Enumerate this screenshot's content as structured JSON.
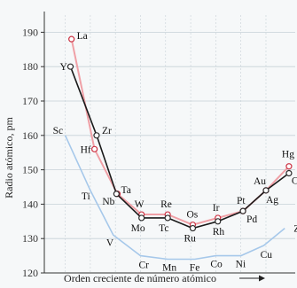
{
  "chart_data": {
    "type": "line",
    "ylabel": "Radio atómico, pm",
    "xlabel": "Orden creciente de número atómico",
    "ylim": [
      120,
      195
    ],
    "yticks": [
      120,
      130,
      140,
      150,
      160,
      170,
      180,
      190
    ],
    "xrange": [
      0,
      24
    ],
    "grid": true,
    "colors": {
      "period4": "#a6c8ea",
      "period5": "#1a1a1a",
      "period5_marker": "#2b2b2b",
      "period6": "#f0a0a6",
      "period6_marker": "#cc3344",
      "grid": "#c7d1d7",
      "axis": "#333333",
      "background": "#f6f8f9"
    },
    "series": [
      {
        "key": "period4",
        "points": [
          {
            "x": 2.0,
            "y": 160,
            "label": "Sc"
          },
          {
            "x": 4.4,
            "y": 144,
            "label": "Ti"
          },
          {
            "x": 6.6,
            "y": 131,
            "label": "V"
          },
          {
            "x": 9.2,
            "y": 125,
            "label": "Cr"
          },
          {
            "x": 11.8,
            "y": 124,
            "label": "Mn"
          },
          {
            "x": 14.4,
            "y": 124,
            "label": "Fe"
          },
          {
            "x": 16.4,
            "y": 125,
            "label": "Co"
          },
          {
            "x": 18.8,
            "y": 125,
            "label": "Ni"
          },
          {
            "x": 21.0,
            "y": 128,
            "label": "Cu"
          },
          {
            "x": 23.0,
            "y": 133,
            "label": "Zn"
          }
        ]
      },
      {
        "key": "period5",
        "points": [
          {
            "x": 2.5,
            "y": 180,
            "label": "Y"
          },
          {
            "x": 5.0,
            "y": 160,
            "label": "Zr"
          },
          {
            "x": 6.9,
            "y": 143,
            "label": "Nb"
          },
          {
            "x": 9.3,
            "y": 136,
            "label": "Mo"
          },
          {
            "x": 11.8,
            "y": 136,
            "label": "Tc"
          },
          {
            "x": 14.2,
            "y": 133,
            "label": "Ru"
          },
          {
            "x": 16.6,
            "y": 135,
            "label": "Rh"
          },
          {
            "x": 19.0,
            "y": 138,
            "label": "Pd"
          },
          {
            "x": 21.2,
            "y": 144,
            "label": "Ag"
          },
          {
            "x": 23.4,
            "y": 149,
            "label": "Cd"
          }
        ]
      },
      {
        "key": "period6",
        "points": [
          {
            "x": 2.6,
            "y": 188,
            "label": "La"
          },
          {
            "x": 4.8,
            "y": 156,
            "label": "Hf"
          },
          {
            "x": 7.0,
            "y": 143,
            "label": "Ta"
          },
          {
            "x": 9.3,
            "y": 137,
            "label": "W"
          },
          {
            "x": 11.8,
            "y": 137,
            "label": "Re"
          },
          {
            "x": 14.2,
            "y": 134,
            "label": "Os"
          },
          {
            "x": 16.6,
            "y": 136,
            "label": "Ir"
          },
          {
            "x": 19.0,
            "y": 138,
            "label": "Pt"
          },
          {
            "x": 21.2,
            "y": 144,
            "label": "Au"
          },
          {
            "x": 23.4,
            "y": 151,
            "label": "Hg"
          }
        ]
      }
    ]
  }
}
